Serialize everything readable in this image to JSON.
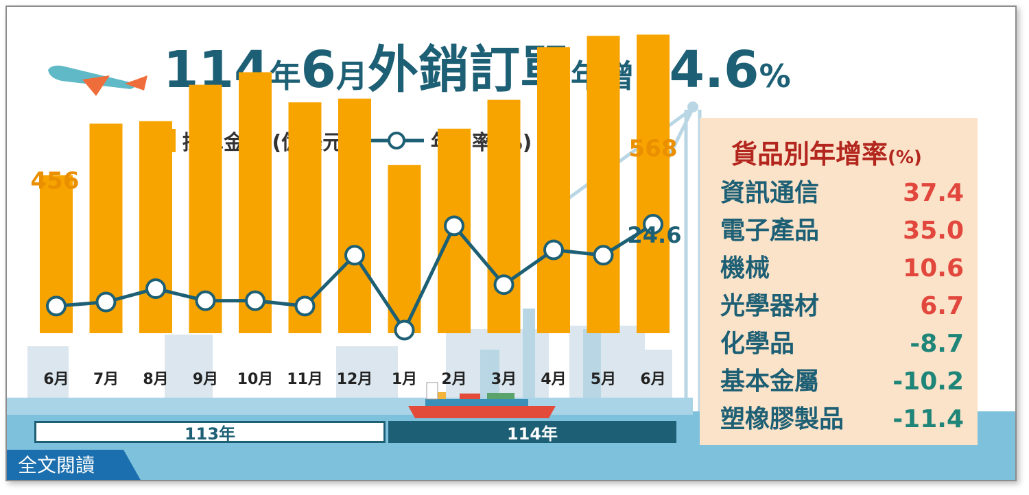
{
  "title": {
    "part1": "114",
    "part2": "年",
    "part3": "6",
    "part4": "月",
    "part5": "外銷訂單",
    "part6": "年增",
    "part7": "24.6",
    "part8": "%"
  },
  "legend": {
    "bar_label": "接單金額 (億美元)",
    "line_label": "年增率(%)"
  },
  "colors": {
    "bar": "#f8a400",
    "line": "#1d5f74",
    "accent_red": "#b3261e",
    "positive": "#e2473d",
    "negative": "#1f8578",
    "panel_bg": "#fbe3c9"
  },
  "chart_data": {
    "type": "bar+line",
    "categories": [
      "6月",
      "7月",
      "8月",
      "9月",
      "10月",
      "11月",
      "12月",
      "1月",
      "2月",
      "3月",
      "4月",
      "5月",
      "6月"
    ],
    "series": [
      {
        "name": "接單金額 (億美元)",
        "type": "bar",
        "values": [
          456,
          497,
          499,
          528,
          538,
          514,
          517,
          464,
          493,
          516,
          558,
          567,
          568
        ]
      },
      {
        "name": "年增率(%)",
        "type": "line",
        "values": [
          -6,
          -4.5,
          0.5,
          -4,
          -4,
          -6,
          13,
          -15,
          24,
          2,
          15,
          13,
          24.6
        ]
      }
    ],
    "data_labels": {
      "first_bar": "456",
      "last_bar": "568",
      "last_point": "24.6"
    },
    "year_groups": [
      {
        "label": "113年",
        "months": 7
      },
      {
        "label": "114年",
        "months": 6
      }
    ]
  },
  "panel": {
    "title": "貨品別年增率",
    "unit": "(%)",
    "rows": [
      {
        "name": "資訊通信",
        "value": "37.4"
      },
      {
        "name": "電子產品",
        "value": "35.0"
      },
      {
        "name": "機械",
        "value": "10.6"
      },
      {
        "name": "光學器材",
        "value": "6.7"
      },
      {
        "name": "化學品",
        "value": "-8.7"
      },
      {
        "name": "基本金屬",
        "value": "-10.2"
      },
      {
        "name": "塑橡膠製品",
        "value": "-11.4"
      }
    ]
  },
  "footer": {
    "read_more": "全文閱讀"
  }
}
